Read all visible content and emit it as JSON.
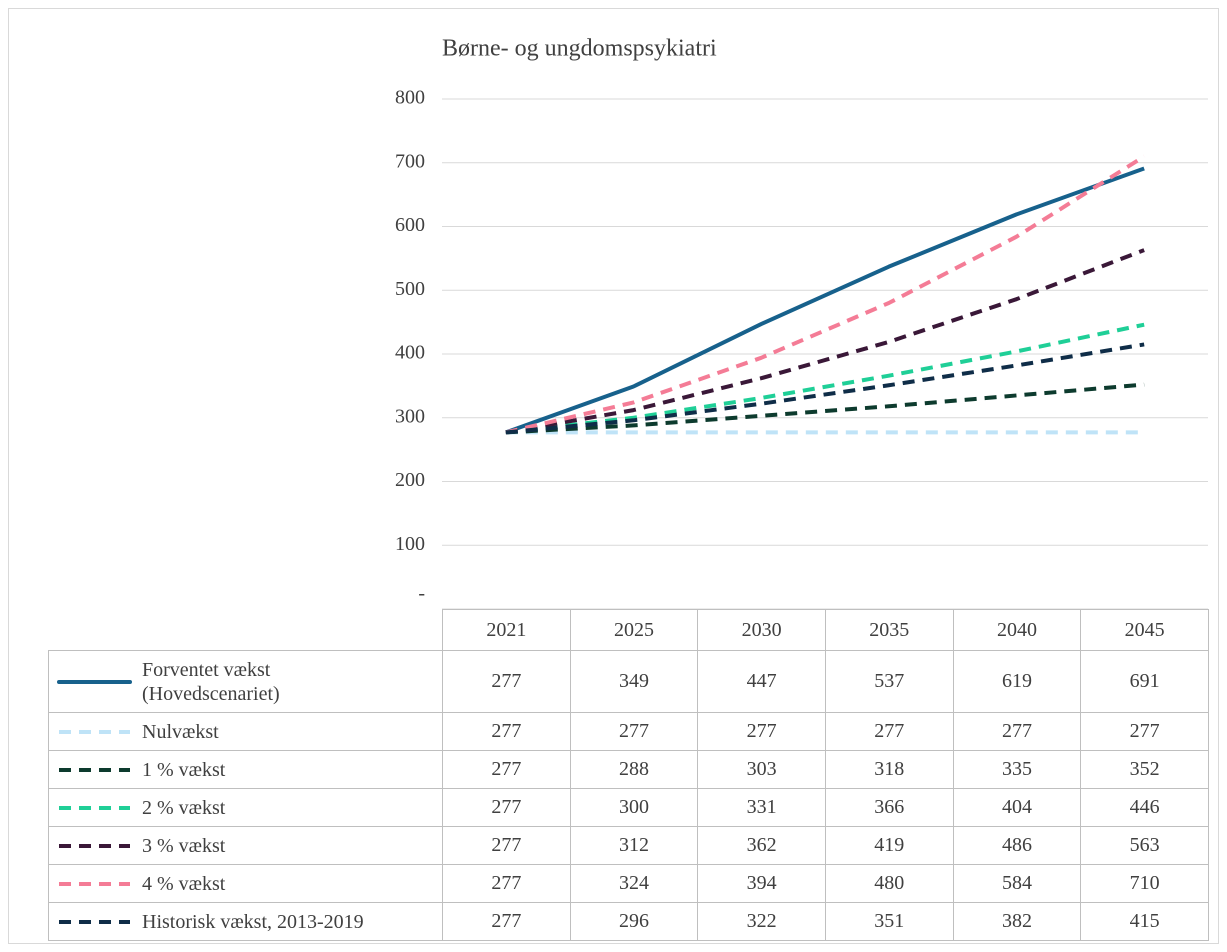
{
  "chart_data": {
    "type": "line",
    "title": "Børne- og ungdomspsykiatri",
    "categories": [
      "2021",
      "2025",
      "2030",
      "2035",
      "2040",
      "2045"
    ],
    "ylim": [
      0,
      800
    ],
    "yticks": [
      {
        "value": 0,
        "label": "-"
      },
      100,
      200,
      300,
      400,
      500,
      600,
      700,
      800
    ],
    "grid": true,
    "series": [
      {
        "name": "Forventet vækst (Hovedscenariet)",
        "color": "#17618c",
        "line_style": "solid",
        "values": [
          277,
          349,
          447,
          537,
          619,
          691
        ]
      },
      {
        "name": "Nulvækst",
        "color": "#bfe3f7",
        "line_style": "dashed",
        "values": [
          277,
          277,
          277,
          277,
          277,
          277
        ]
      },
      {
        "name": "1 % vækst",
        "color": "#0d3b2e",
        "line_style": "dashed",
        "values": [
          277,
          288,
          303,
          318,
          335,
          352
        ]
      },
      {
        "name": "2 % vækst",
        "color": "#1fcf97",
        "line_style": "dashed",
        "values": [
          277,
          300,
          331,
          366,
          404,
          446
        ]
      },
      {
        "name": "3 % vækst",
        "color": "#3a1838",
        "line_style": "dashed",
        "values": [
          277,
          312,
          362,
          419,
          486,
          563
        ]
      },
      {
        "name": "4 % vækst",
        "color": "#f47c96",
        "line_style": "dashed",
        "values": [
          277,
          324,
          394,
          480,
          584,
          710
        ]
      },
      {
        "name": "Historisk vækst, 2013-2019",
        "color": "#0f2d48",
        "line_style": "dashed",
        "values": [
          277,
          296,
          322,
          351,
          382,
          415
        ]
      }
    ]
  }
}
